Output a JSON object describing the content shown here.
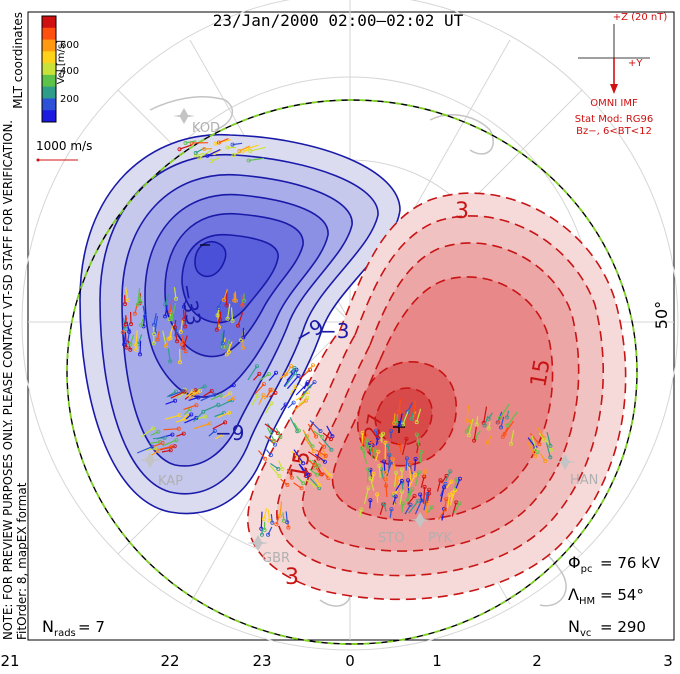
{
  "title": "23/Jan/2000 02:00–02:02 UT",
  "side_note": {
    "line1": "NOTE: FOR PREVIEW PURPOSES ONLY. PLEASE CONTACT VT-SD STAFF FOR VERIFICATION.",
    "line2": "FitOrder: 8, mapEX format"
  },
  "coords_label": "MLT coordinates",
  "colorbar": {
    "label": "Vel [m/s]",
    "ticks": [
      "600",
      "400",
      "200"
    ],
    "colors": [
      "#d01010",
      "#ff5010",
      "#ff9a10",
      "#ffd21a",
      "#c8e23a",
      "#5cc24a",
      "#2e9e8a",
      "#2c52d8",
      "#1a1ae0"
    ]
  },
  "scale_label": "1000 m/s",
  "imf": {
    "z_label": "+Z (20 nT)",
    "y_label": "+Y",
    "source": "OMNI IMF",
    "stat_mod": "Stat Mod: RG96",
    "bz": "Bz−, 6<BT<12"
  },
  "lat_label": "50°",
  "potential_labels": {
    "neg": [
      "−33",
      "−9",
      "−9",
      "−3"
    ],
    "pos": [
      "3",
      "15",
      "15",
      "3",
      "27"
    ]
  },
  "stations": [
    "KOD",
    "KAP",
    "GBR",
    "STO",
    "PYK",
    "HAN"
  ],
  "stats": {
    "phi_pc": "= 76 kV",
    "lambda_hm": "= 54°",
    "n_vc": "= 290",
    "n_rads": "= 7"
  },
  "mlt_ticks": [
    "21",
    "22",
    "23",
    "0",
    "1",
    "2",
    "3"
  ],
  "colors": {
    "negative_contour": "#1a1aa8",
    "positive_contour": "#c81414",
    "boundary_green": "#7ed321",
    "map_grey": "#bdbdbd"
  }
}
